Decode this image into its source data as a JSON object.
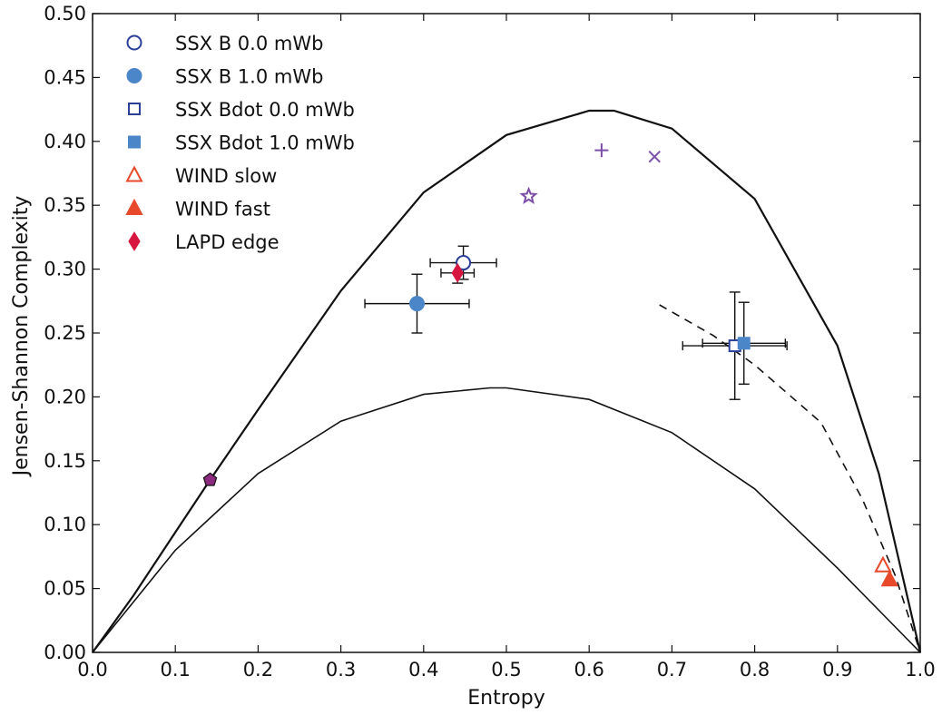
{
  "chart_data": {
    "type": "scatter",
    "title": "",
    "xlabel": "Entropy",
    "ylabel": "Jensen-Shannon Complexity",
    "xlim": [
      0.0,
      1.0
    ],
    "ylim": [
      0.0,
      0.5
    ],
    "x_ticks": [
      "0.0",
      "0.1",
      "0.2",
      "0.3",
      "0.4",
      "0.5",
      "0.6",
      "0.7",
      "0.8",
      "0.9",
      "1.0"
    ],
    "y_ticks": [
      "0.00",
      "0.05",
      "0.10",
      "0.15",
      "0.20",
      "0.25",
      "0.30",
      "0.35",
      "0.40",
      "0.45",
      "0.50"
    ],
    "grid": false,
    "legend_position": "top-left",
    "series": [
      {
        "name": "SSX B 0.0 mWb",
        "marker": "circle-open",
        "color": "#2b3f99",
        "x": 0.448,
        "y": 0.305,
        "x_err": 0.04,
        "y_err": 0.013
      },
      {
        "name": "SSX B 1.0 mWb",
        "marker": "circle-filled",
        "color": "#4a86c8",
        "x": 0.392,
        "y": 0.273,
        "x_err": 0.063,
        "y_err": 0.023
      },
      {
        "name": "SSX Bdot 0.0 mWb",
        "marker": "square-open",
        "color": "#2b3f99",
        "x": 0.776,
        "y": 0.24,
        "x_err": 0.063,
        "y_err": 0.042
      },
      {
        "name": "SSX Bdot 1.0 mWb",
        "marker": "square-filled",
        "color": "#4a86c8",
        "x": 0.787,
        "y": 0.242,
        "x_err": 0.05,
        "y_err": 0.032
      },
      {
        "name": "WIND slow",
        "marker": "triangle-open",
        "color": "#e8492a",
        "x": 0.955,
        "y": 0.068
      },
      {
        "name": "WIND fast",
        "marker": "triangle-filled",
        "color": "#e8492a",
        "x": 0.963,
        "y": 0.057
      },
      {
        "name": "LAPD edge",
        "marker": "diamond-filled",
        "color": "#d6163e",
        "x": 0.441,
        "y": 0.297,
        "x_err": 0.02,
        "y_err": 0.008
      }
    ],
    "unlabeled_points": [
      {
        "marker": "plus",
        "color": "#7c4ea8",
        "x": 0.615,
        "y": 0.393
      },
      {
        "marker": "x",
        "color": "#7c4ea8",
        "x": 0.679,
        "y": 0.388
      },
      {
        "marker": "star-open",
        "color": "#7c4ea8",
        "x": 0.527,
        "y": 0.357
      },
      {
        "marker": "pentagon-filled",
        "color": "#8b2a7e",
        "x": 0.142,
        "y": 0.135
      }
    ],
    "curves": [
      {
        "style": "solid",
        "role": "upper-bound",
        "points": [
          [
            0,
            0
          ],
          [
            0.05,
            0.045
          ],
          [
            0.1,
            0.094
          ],
          [
            0.142,
            0.135
          ],
          [
            0.2,
            0.19
          ],
          [
            0.3,
            0.283
          ],
          [
            0.4,
            0.36
          ],
          [
            0.5,
            0.405
          ],
          [
            0.6,
            0.424
          ],
          [
            0.63,
            0.424
          ],
          [
            0.7,
            0.41
          ],
          [
            0.8,
            0.355
          ],
          [
            0.9,
            0.24
          ],
          [
            0.95,
            0.14
          ],
          [
            1.0,
            0
          ]
        ]
      },
      {
        "style": "solid",
        "role": "lower-bound",
        "points": [
          [
            0,
            0
          ],
          [
            0.05,
            0.04
          ],
          [
            0.1,
            0.08
          ],
          [
            0.2,
            0.14
          ],
          [
            0.3,
            0.181
          ],
          [
            0.4,
            0.202
          ],
          [
            0.48,
            0.207
          ],
          [
            0.5,
            0.207
          ],
          [
            0.6,
            0.198
          ],
          [
            0.7,
            0.172
          ],
          [
            0.8,
            0.128
          ],
          [
            0.9,
            0.066
          ],
          [
            0.95,
            0.033
          ],
          [
            1.0,
            0
          ]
        ]
      },
      {
        "style": "dashed",
        "role": "reference",
        "points": [
          [
            0.685,
            0.272
          ],
          [
            0.75,
            0.248
          ],
          [
            0.8,
            0.225
          ],
          [
            0.88,
            0.18
          ],
          [
            0.93,
            0.12
          ],
          [
            0.97,
            0.06
          ],
          [
            1.0,
            0.0
          ]
        ]
      }
    ]
  }
}
